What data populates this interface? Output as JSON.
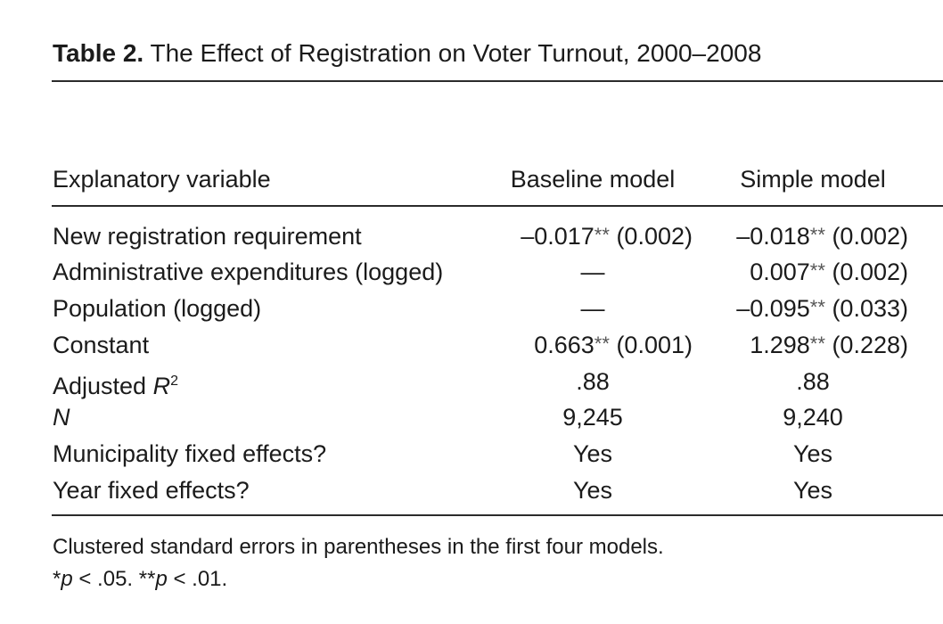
{
  "table": {
    "title_bold": "Table 2.",
    "title_rest": "The Effect of Registration on Voter Turnout, 2000–2008",
    "headers": [
      "Explanatory variable",
      "Baseline model",
      "Simple model"
    ],
    "rows": [
      {
        "label": "New registration requirement",
        "c1_val": "–0.017",
        "c1_stars": "**",
        "c1_se": "(0.002)",
        "c2_val": "–0.018",
        "c2_stars": "**",
        "c2_se": "(0.002)"
      },
      {
        "label": "Administrative expenditures (logged)",
        "c1_text": "—",
        "c2_val": "0.007",
        "c2_stars": "**",
        "c2_se": "(0.002)"
      },
      {
        "label": "Population (logged)",
        "c1_text": "—",
        "c2_val": "–0.095",
        "c2_stars": "**",
        "c2_se": "(0.033)"
      },
      {
        "label": "Constant",
        "c1_val": "0.663",
        "c1_stars": "**",
        "c1_se": "(0.001)",
        "c2_val": "1.298",
        "c2_stars": "**",
        "c2_se": "(0.228)"
      },
      {
        "label_main": "Adjusted ",
        "label_italic": "R",
        "label_sup": "2",
        "c1_text": ".88",
        "c2_text": ".88"
      },
      {
        "label_italic": "N",
        "c1_text": "9,245",
        "c2_text": "9,240"
      },
      {
        "label": "Municipality fixed effects?",
        "c1_text": "Yes",
        "c2_text": "Yes"
      },
      {
        "label": "Year fixed effects?",
        "c1_text": "Yes",
        "c2_text": "Yes"
      }
    ],
    "note_line1": "Clustered standard errors in parentheses in the first four models.",
    "note_p1_stars": "*",
    "note_p_symbol": "p",
    "note_p1_rest": " < .05. ",
    "note_p2_stars": "**",
    "note_p2_rest": " < .01."
  }
}
